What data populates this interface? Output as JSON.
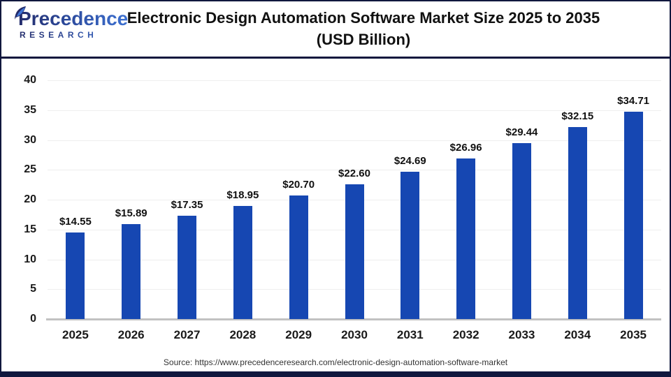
{
  "header": {
    "title_line1": "Electronic Design Automation Software Market Size 2025 to 2035",
    "title_line2": "(USD Billion)",
    "logo": {
      "brand": "Precedence",
      "subtitle": "RESEARCH"
    }
  },
  "chart_data": {
    "type": "bar",
    "title": "Electronic Design Automation Software Market Size 2025 to 2035 (USD Billion)",
    "categories": [
      "2025",
      "2026",
      "2027",
      "2028",
      "2029",
      "2030",
      "2031",
      "2032",
      "2033",
      "2034",
      "2035"
    ],
    "values": [
      14.55,
      15.89,
      17.35,
      18.95,
      20.7,
      22.6,
      24.69,
      26.96,
      29.44,
      32.15,
      34.71
    ],
    "bar_labels": [
      "$14.55",
      "$15.89",
      "$17.35",
      "$18.95",
      "$20.70",
      "$22.60",
      "$24.69",
      "$26.96",
      "$29.44",
      "$32.15",
      "$34.71"
    ],
    "xlabel": "",
    "ylabel": "",
    "ylim": [
      0,
      40
    ],
    "y_ticks": [
      0,
      5,
      10,
      15,
      20,
      25,
      30,
      35,
      40
    ],
    "grid": "horizontal",
    "legend": "none",
    "bar_color": "#1647b2"
  },
  "footer": {
    "source": "Source: https://www.precedenceresearch.com/electronic-design-automation-software-market"
  },
  "colors": {
    "bar": "#1647b2",
    "frame_navy": "#10173d",
    "logo_navy": "#232a68",
    "logo_blue": "#3e74d6",
    "gridline": "#eeeeee",
    "axis_line": "#c2c2c2"
  }
}
